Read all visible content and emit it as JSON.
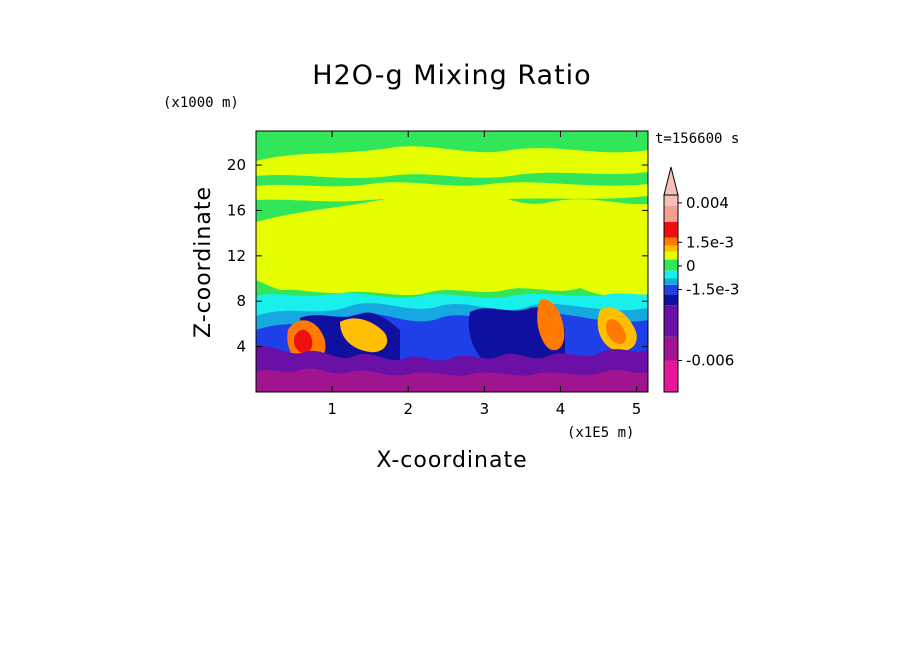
{
  "chart_data": {
    "type": "heatmap",
    "title": "H2O-g Mixing Ratio",
    "xlabel": "X-coordinate",
    "ylabel": "Z-coordinate",
    "x_scale_label": "(x1E5 m)",
    "y_scale_label": "(x1000 m)",
    "time_label": "t=156600 s",
    "xlim": [
      0,
      5.15
    ],
    "ylim": [
      0,
      23
    ],
    "x_ticks": [
      1,
      2,
      3,
      4,
      5
    ],
    "y_ticks": [
      4,
      8,
      12,
      16,
      20
    ],
    "colorbar": {
      "labels": [
        "0.004",
        "1.5e-3",
        "0",
        "-1.5e-3",
        "-0.006"
      ],
      "label_values": [
        0.004,
        0.0015,
        0,
        -0.0015,
        -0.006
      ],
      "range": [
        -0.008,
        0.0045
      ],
      "levels": [
        {
          "from": -0.008,
          "to": -0.006,
          "color": "#e8169a"
        },
        {
          "from": -0.006,
          "to": -0.0045,
          "color": "#a01490"
        },
        {
          "from": -0.0045,
          "to": -0.0025,
          "color": "#6a10a6"
        },
        {
          "from": -0.0025,
          "to": -0.0018,
          "color": "#1010a0"
        },
        {
          "from": -0.0018,
          "to": -0.0012,
          "color": "#1f3fe8"
        },
        {
          "from": -0.0012,
          "to": -0.0008,
          "color": "#16a8e0"
        },
        {
          "from": -0.0008,
          "to": -0.0003,
          "color": "#19f0ec"
        },
        {
          "from": -0.0003,
          "to": 0.0004,
          "color": "#32e65a"
        },
        {
          "from": 0.0004,
          "to": 0.0009,
          "color": "#e6ff00"
        },
        {
          "from": 0.0009,
          "to": 0.0013,
          "color": "#ffbe00"
        },
        {
          "from": 0.0013,
          "to": 0.0018,
          "color": "#ff7a00"
        },
        {
          "from": 0.0018,
          "to": 0.0028,
          "color": "#ee1010"
        },
        {
          "from": 0.0028,
          "to": 0.0038,
          "color": "#f4a090"
        },
        {
          "from": 0.0038,
          "to": 0.0045,
          "color": "#f5c0b8"
        }
      ]
    },
    "regions": [
      {
        "z_from": 0,
        "z_to": 4,
        "dominant_value": -0.005,
        "color": "#6a10a6"
      },
      {
        "z_from": 4,
        "z_to": 8,
        "dominant_value": -0.0015,
        "color": "#1f3fe8"
      },
      {
        "z_from": 8,
        "z_to": 10,
        "dominant_value": -0.0005,
        "color": "#19f0ec"
      },
      {
        "z_from": 10,
        "z_to": 18,
        "dominant_value": 0.0006,
        "color": "#e6ff00"
      },
      {
        "z_from": 18,
        "z_to": 23,
        "dominant_value": 0.0,
        "color": "#32e65a"
      }
    ]
  }
}
